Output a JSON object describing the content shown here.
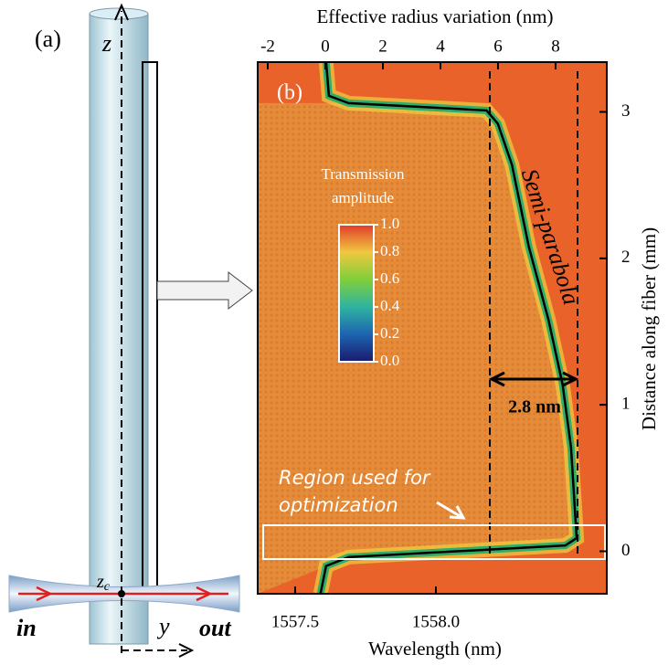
{
  "panel_a": {
    "label": "(a)",
    "z": "z",
    "zc": {
      "base": "z",
      "sub": "c"
    },
    "y": "y",
    "in": "in",
    "out": "out"
  },
  "chart_data": {
    "type": "heatmap",
    "panel_label": "(b)",
    "xlabel": "Wavelength (nm)",
    "xlim": [
      1557.367,
      1558.607
    ],
    "xticks": [
      1557.5,
      {
        "value": 1558,
        "label": "1558.0"
      }
    ],
    "x2label": "Effective radius variation (nm)",
    "x2lim": [
      -2.35,
      9.78
    ],
    "x2ticks": [
      -2,
      0,
      2,
      4,
      6,
      8
    ],
    "ylabel": "Distance along fiber (mm)",
    "ylim": [
      -0.29,
      3.34
    ],
    "yticks": [
      0,
      1,
      2,
      3
    ],
    "colorbar_title": [
      "Transmission",
      "amplitude"
    ],
    "clim": [
      0,
      1
    ],
    "cticks": [
      {
        "value": 0,
        "label": "0.0"
      },
      0.2,
      0.4,
      0.6,
      0.8,
      {
        "value": 1,
        "label": "1.0"
      }
    ],
    "curve": {
      "x": [
        1557.61,
        1557.62,
        1557.69,
        1558.18,
        1558.22,
        1558.27,
        1558.33,
        1558.4,
        1558.45,
        1558.48,
        1558.5,
        1558.46,
        1557.69,
        1557.61,
        1557.59
      ],
      "y": [
        3.34,
        3.11,
        3.06,
        3.01,
        2.92,
        2.64,
        2.08,
        1.58,
        1.14,
        0.71,
        0.09,
        0.04,
        -0.04,
        -0.1,
        -0.29
      ],
      "color": "#000000"
    },
    "curve_label": "Semi-parabola",
    "width_label": "2.8 nm",
    "region_label": [
      "Region used for",
      "optimization"
    ]
  }
}
